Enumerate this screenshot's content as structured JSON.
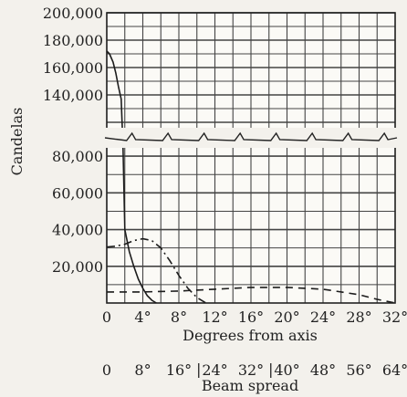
{
  "chart_data": {
    "type": "line",
    "xlabel": "Degrees from axis",
    "ylabel": "Candelas",
    "x_ticks": [
      "0",
      "4°",
      "8°",
      "12°",
      "16°",
      "20°",
      "24°",
      "28°",
      "32°"
    ],
    "xlim": [
      0,
      32
    ],
    "y_ticks_upper": [
      "200,000",
      "180,000",
      "160,000",
      "140,000"
    ],
    "y_ticks_lower": [
      "80,000",
      "60,000",
      "40,000",
      "20,000"
    ],
    "ylim_upper": [
      120000,
      200000
    ],
    "ylim_lower": [
      0,
      90000
    ],
    "axis_break": true,
    "grid": true,
    "secondary_axis": {
      "label": "Beam spread",
      "ticks": [
        "0",
        "8°",
        "16°",
        "24°",
        "32°",
        "40°",
        "48°",
        "56°",
        "64°"
      ],
      "bracketed_between": [
        [
          "16°",
          "24°"
        ],
        [
          "32°",
          "40°"
        ]
      ]
    },
    "series": [
      {
        "style": "solid",
        "x": [
          0,
          0.3,
          0.7,
          1.0,
          1.3,
          1.6,
          1.8,
          2.0,
          2.5,
          3.0,
          3.5,
          4.0,
          4.5,
          5.0,
          5.5
        ],
        "y": [
          172000,
          170000,
          164000,
          156000,
          146000,
          137000,
          85000,
          40000,
          28000,
          20000,
          13000,
          8000,
          4000,
          1500,
          0
        ]
      },
      {
        "style": "dash-dot",
        "x": [
          0,
          1,
          2,
          3,
          4,
          5,
          6,
          7,
          8,
          9,
          10,
          11
        ],
        "y": [
          30500,
          31000,
          32000,
          34000,
          35000,
          34000,
          30000,
          23000,
          15000,
          8000,
          3000,
          0
        ]
      },
      {
        "style": "dashed",
        "x": [
          0,
          4,
          8,
          12,
          16,
          20,
          24,
          28,
          30,
          32
        ],
        "y": [
          6000,
          6000,
          6500,
          7500,
          8500,
          8500,
          7500,
          4500,
          2000,
          0
        ]
      }
    ]
  }
}
